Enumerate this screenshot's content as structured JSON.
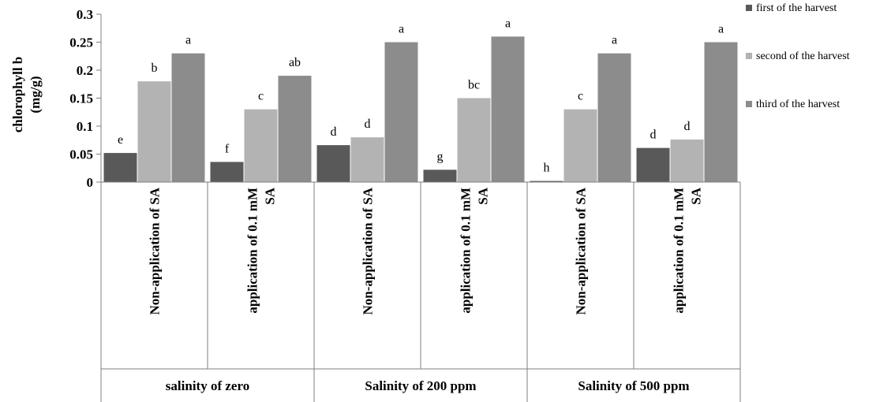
{
  "chart_data": {
    "type": "bar",
    "ylabel_lines": [
      "chlorophyll b",
      "(mg/g)"
    ],
    "ylim": [
      0,
      0.3
    ],
    "yticks": [
      "0",
      "0.05",
      "0.1",
      "0.15",
      "0.2",
      "0.25",
      "0.3"
    ],
    "categories": [
      {
        "lines": [
          "Non-application of SA"
        ]
      },
      {
        "lines": [
          "application of 0.1 mM",
          "SA"
        ]
      },
      {
        "lines": [
          "Non-application of SA"
        ]
      },
      {
        "lines": [
          "application of 0.1 mM",
          "SA"
        ]
      },
      {
        "lines": [
          "Non-application of SA"
        ]
      },
      {
        "lines": [
          "application of 0.1 mM",
          "SA"
        ]
      }
    ],
    "groups": [
      "salinity of zero",
      "Salinity of 200 ppm",
      "Salinity of 500 ppm"
    ],
    "series": [
      {
        "name": "first of the harvest",
        "color": "#595959",
        "values": [
          0.052,
          0.036,
          0.066,
          0.022,
          0.002,
          0.061
        ],
        "letters": [
          "e",
          "f",
          "d",
          "g",
          "h",
          "d"
        ]
      },
      {
        "name": "second of the harvest",
        "color": "#b3b3b3",
        "values": [
          0.18,
          0.13,
          0.08,
          0.15,
          0.13,
          0.076
        ],
        "letters": [
          "b",
          "c",
          "d",
          "bc",
          "c",
          "d"
        ]
      },
      {
        "name": "third of the harvest",
        "color": "#8c8c8c",
        "values": [
          0.23,
          0.19,
          0.25,
          0.26,
          0.23,
          0.25
        ],
        "letters": [
          "a",
          "ab",
          "a",
          "a",
          "a",
          "a"
        ]
      }
    ],
    "legend_position": "right",
    "grid": false
  }
}
